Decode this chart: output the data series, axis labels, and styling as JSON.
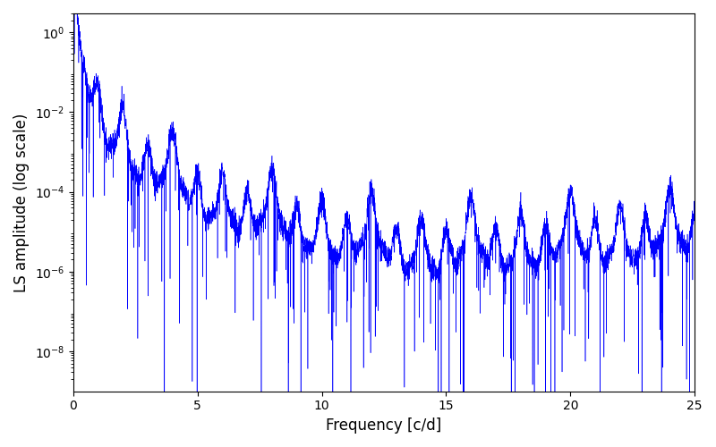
{
  "title": "",
  "xlabel": "Frequency [c/d]",
  "ylabel": "LS amplitude (log scale)",
  "line_color": "#0000ff",
  "xlim": [
    0,
    25
  ],
  "ylim": [
    1e-09,
    3.0
  ],
  "xticks": [
    0,
    5,
    10,
    15,
    20,
    25
  ],
  "figsize": [
    8.0,
    5.0
  ],
  "dpi": 100,
  "seed": 12345,
  "n_points": 5000,
  "freq_max": 25.0,
  "background_color": "#ffffff"
}
